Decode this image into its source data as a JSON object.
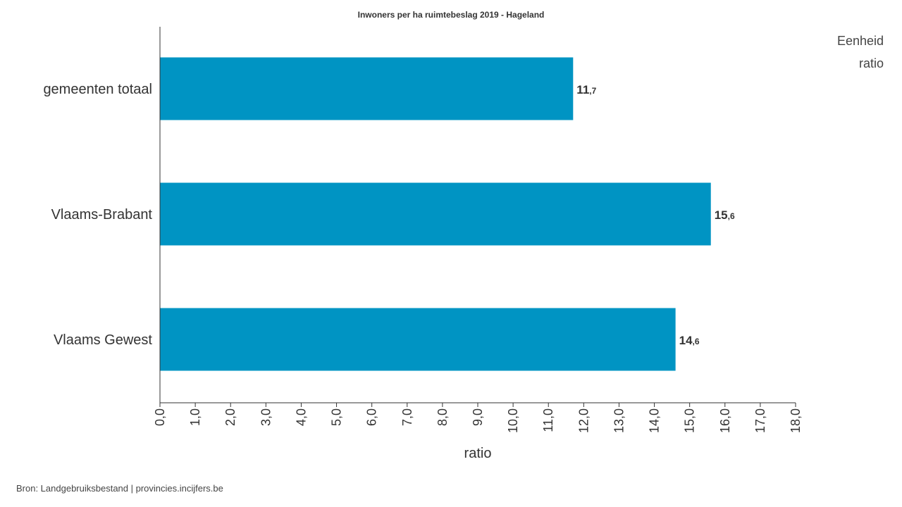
{
  "chart_data": {
    "type": "bar",
    "orientation": "horizontal",
    "title": "Inwoners per ha ruimtebeslag 2019 - Hageland",
    "categories": [
      "gemeenten totaal",
      "Vlaams-Brabant",
      "Vlaams Gewest"
    ],
    "values": [
      11.7,
      15.6,
      14.6
    ],
    "value_labels": [
      {
        "int": "11",
        "dec": ",7"
      },
      {
        "int": "15",
        "dec": ",6"
      },
      {
        "int": "14",
        "dec": ",6"
      }
    ],
    "xlabel": "ratio",
    "ylabel": "",
    "xlim": [
      0,
      18
    ],
    "ticks": [
      "0,0",
      "1,0",
      "2,0",
      "3,0",
      "4,0",
      "5,0",
      "6,0",
      "7,0",
      "8,0",
      "9,0",
      "10,0",
      "11,0",
      "12,0",
      "13,0",
      "14,0",
      "15,0",
      "16,0",
      "17,0",
      "18,0"
    ],
    "grid": false,
    "bar_color": "#0094c3"
  },
  "unit": {
    "label": "Eenheid",
    "value": "ratio"
  },
  "source": "Bron: Landgebruiksbestand | provincies.incijfers.be"
}
